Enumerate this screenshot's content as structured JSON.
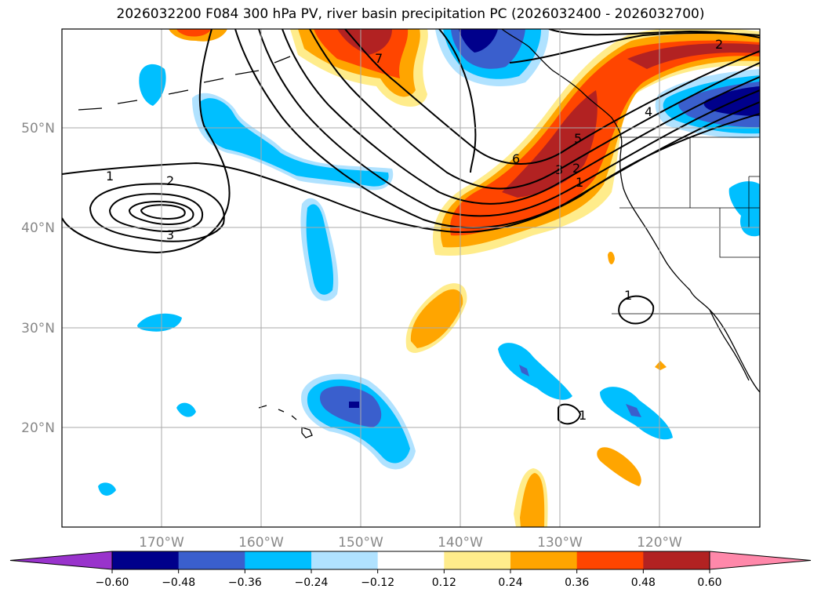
{
  "title": "2026032200 F084 300 hPa PV, river basin precipitation PC (2026032400 - 2026032700)",
  "map": {
    "projection": "cylindrical",
    "lon_range": [
      -180,
      -110
    ],
    "lat_range": [
      10,
      60
    ],
    "lat_ticks": [
      "50°N",
      "40°N",
      "30°N",
      "20°N"
    ],
    "lon_ticks": [
      "170°W",
      "160°W",
      "150°W",
      "140°W",
      "130°W",
      "120°W"
    ],
    "grid": true,
    "contour_labels": [
      "1",
      "2",
      "3",
      "7",
      "6",
      "5",
      "3",
      "2",
      "1",
      "4",
      "2",
      "1",
      "1"
    ]
  },
  "colorbar": {
    "ticks": [
      "−0.60",
      "−0.48",
      "−0.36",
      "−0.24",
      "−0.12",
      "0.12",
      "0.24",
      "0.36",
      "0.48",
      "0.60"
    ],
    "colors": [
      "#9933cc",
      "#00008b",
      "#3a5fcd",
      "#00bfff",
      "#b0e2ff",
      "#ffffff",
      "#ffec8b",
      "#ffa500",
      "#ff4500",
      "#b22222",
      "#ff88aa"
    ],
    "extend": "both"
  }
}
